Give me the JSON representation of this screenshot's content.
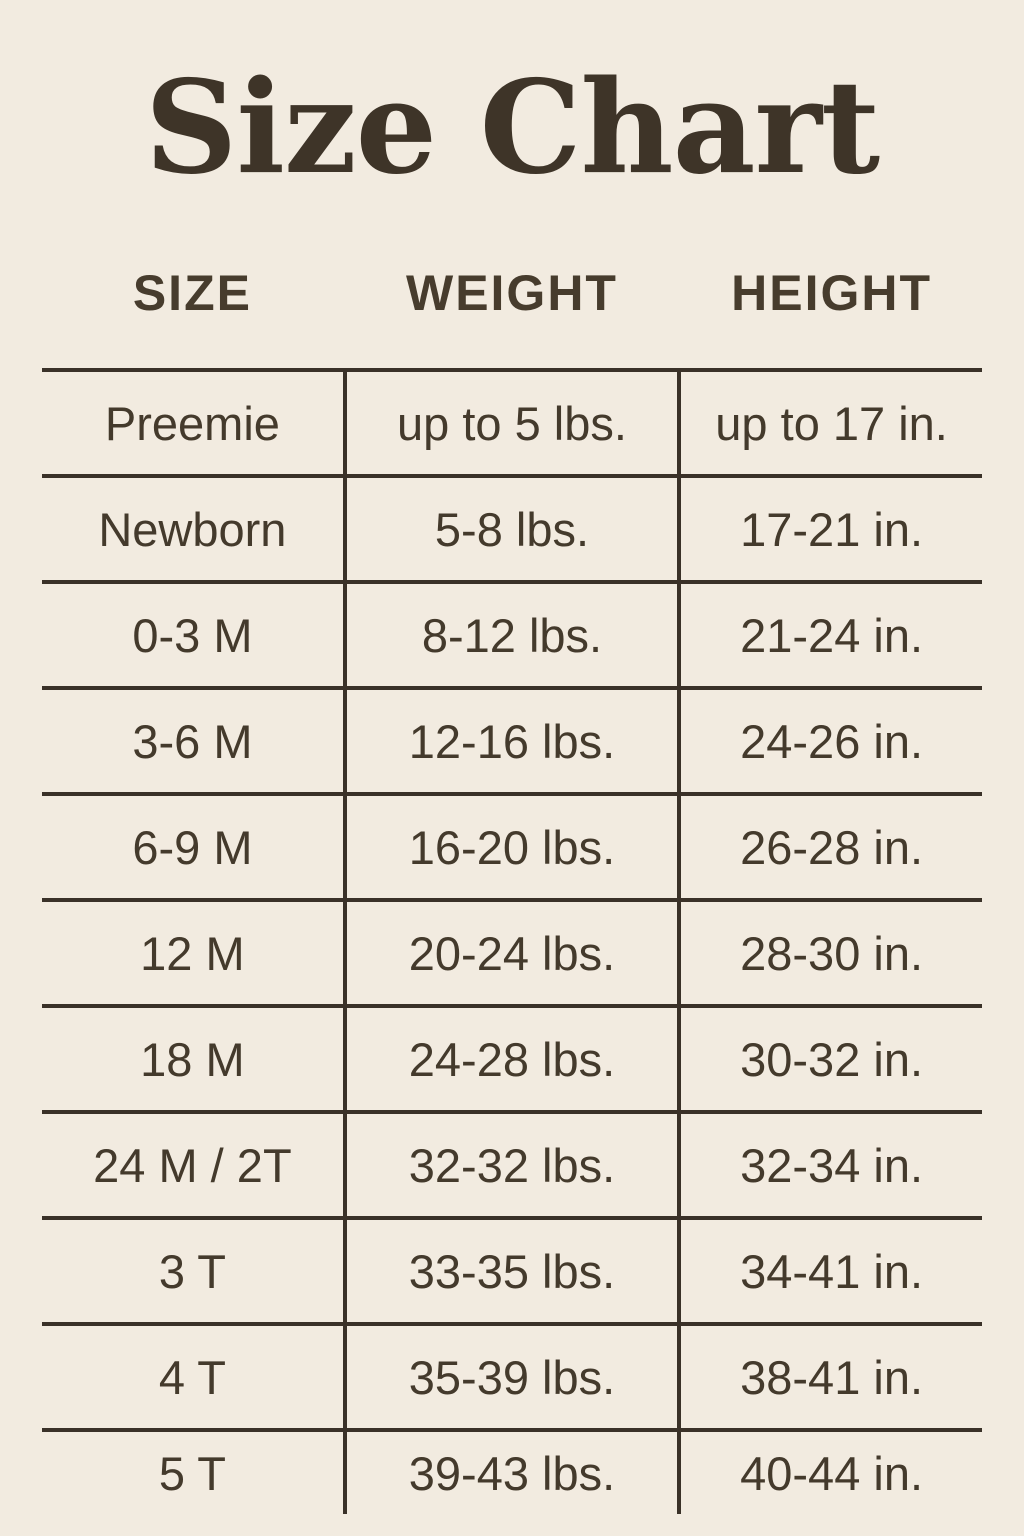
{
  "colors": {
    "background": "#f2ebe0",
    "text": "#443a2c",
    "line": "#3a3128"
  },
  "chart_data": {
    "type": "table",
    "title": "Size Chart",
    "columns": [
      "SIZE",
      "WEIGHT",
      "HEIGHT"
    ],
    "rows": [
      [
        "Preemie",
        "up to 5 lbs.",
        "up to 17 in."
      ],
      [
        "Newborn",
        "5-8 lbs.",
        "17-21 in."
      ],
      [
        "0-3 M",
        "8-12 lbs.",
        "21-24 in."
      ],
      [
        "3-6 M",
        "12-16 lbs.",
        "24-26 in."
      ],
      [
        "6-9 M",
        "16-20 lbs.",
        "26-28 in."
      ],
      [
        "12 M",
        "20-24 lbs.",
        "28-30 in."
      ],
      [
        "18 M",
        "24-28 lbs.",
        "30-32 in."
      ],
      [
        "24 M / 2T",
        "32-32 lbs.",
        "32-34 in."
      ],
      [
        "3 T",
        "33-35 lbs.",
        "34-41 in."
      ],
      [
        "4 T",
        "35-39 lbs.",
        "38-41 in."
      ],
      [
        "5 T",
        "39-43 lbs.",
        "40-44 in."
      ]
    ]
  }
}
